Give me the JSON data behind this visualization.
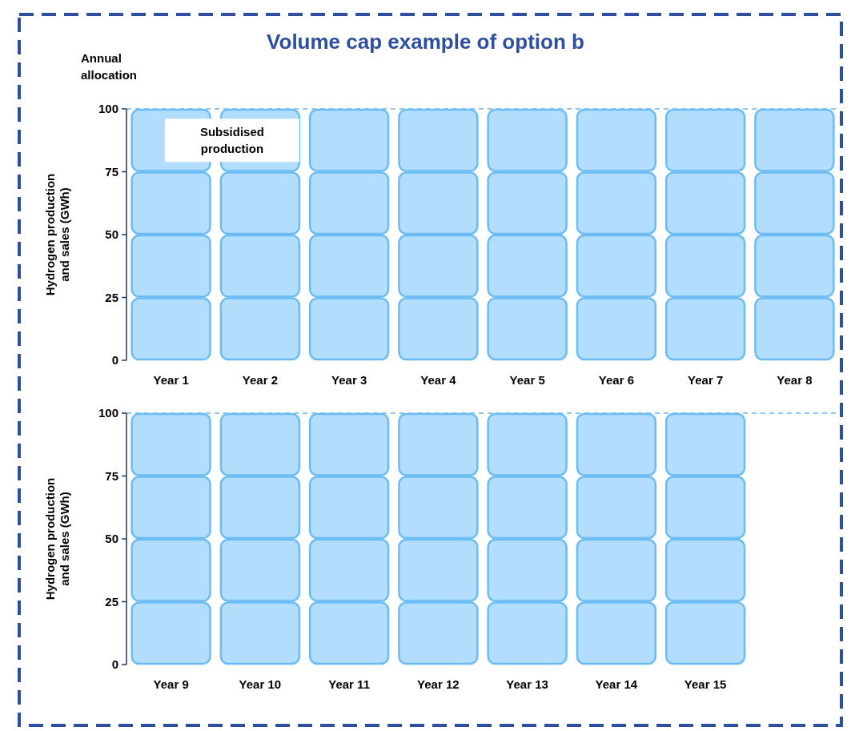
{
  "chart_data": [
    {
      "type": "bar",
      "title": "Volume cap example of option b",
      "ylabel": "Hydrogen production and sales (GWh)",
      "categories": [
        "Year 1",
        "Year 2",
        "Year 3",
        "Year 4",
        "Year 5",
        "Year 6",
        "Year 7",
        "Year 8"
      ],
      "stacked": true,
      "series": [
        {
          "color": "#b3ddfc",
          "values": [
            25,
            25,
            25,
            25,
            25,
            25,
            25,
            25
          ]
        },
        {
          "color": "#b3ddfc",
          "values": [
            25,
            25,
            25,
            25,
            25,
            25,
            25,
            25
          ]
        },
        {
          "color": "#b3ddfc",
          "values": [
            25,
            25,
            25,
            25,
            25,
            25,
            25,
            25
          ]
        },
        {
          "color": "#b3ddfc",
          "values": [
            25,
            25,
            25,
            25,
            25,
            25,
            25,
            25
          ]
        }
      ],
      "ylim": [
        0,
        100
      ],
      "yticks": [
        0,
        25,
        50,
        75,
        100
      ],
      "ref_lines": [
        {
          "axis": "y",
          "value": 100,
          "label": "Annual allocation",
          "color": "#6bb8f0",
          "line_style": "dashed"
        }
      ],
      "annotations": [
        "Subsidised production"
      ]
    },
    {
      "type": "bar",
      "ylabel": "Hydrogen production and sales (GWh)",
      "categories": [
        "Year 9",
        "Year 10",
        "Year 11",
        "Year 12",
        "Year 13",
        "Year 14",
        "Year 15"
      ],
      "stacked": true,
      "series": [
        {
          "color": "#b3ddfc",
          "values": [
            25,
            25,
            25,
            25,
            25,
            25,
            25
          ]
        },
        {
          "color": "#b3ddfc",
          "values": [
            25,
            25,
            25,
            25,
            25,
            25,
            25
          ]
        },
        {
          "color": "#b3ddfc",
          "values": [
            25,
            25,
            25,
            25,
            25,
            25,
            25
          ]
        },
        {
          "color": "#b3ddfc",
          "values": [
            25,
            25,
            25,
            25,
            25,
            25,
            25
          ]
        }
      ],
      "ylim": [
        0,
        100
      ],
      "yticks": [
        0,
        25,
        50,
        75,
        100
      ],
      "ref_lines": [
        {
          "axis": "y",
          "value": 100,
          "color": "#6bb8f0",
          "line_style": "dashed"
        }
      ]
    }
  ]
}
